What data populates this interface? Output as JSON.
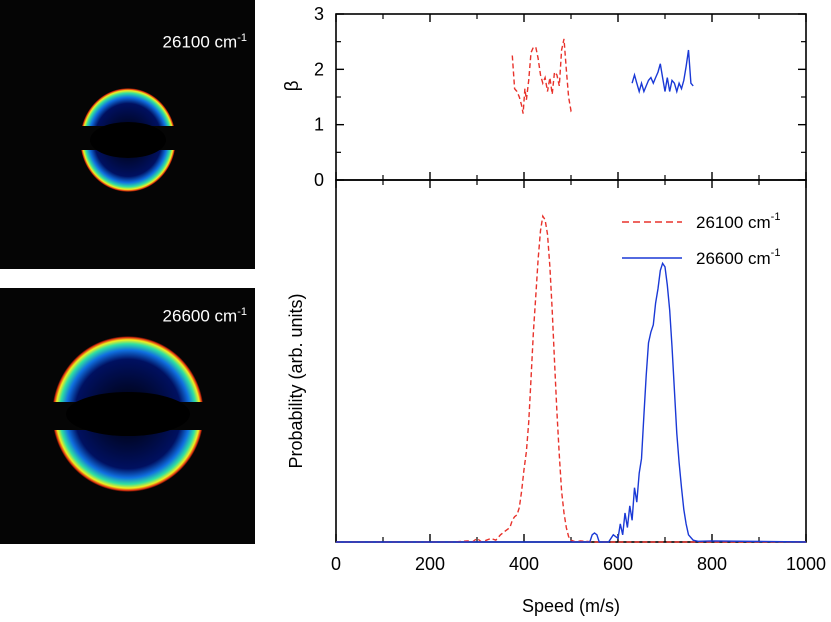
{
  "images": [
    {
      "label": "26100 cm",
      "sup": "-1"
    },
    {
      "label": "26600 cm",
      "sup": "-1"
    }
  ],
  "chart_data": [
    {
      "type": "line",
      "panel": "beta",
      "ylabel": "β",
      "xlim": [
        0,
        1000
      ],
      "ylim": [
        0,
        3
      ],
      "yticks": [
        0,
        1,
        2,
        3
      ],
      "grid": false,
      "series": [
        {
          "name": "26100 cm-1",
          "color": "#e8322b",
          "style": "dashed",
          "x": [
            375,
            380,
            385,
            390,
            395,
            398,
            402,
            405,
            410,
            415,
            420,
            425,
            430,
            435,
            440,
            445,
            450,
            455,
            460,
            465,
            470,
            475,
            480,
            485,
            490,
            495,
            500,
            505
          ],
          "y": [
            2.25,
            1.65,
            1.6,
            1.5,
            1.35,
            1.2,
            1.65,
            1.45,
            1.8,
            2.3,
            2.4,
            2.4,
            2.2,
            1.9,
            1.75,
            1.85,
            1.6,
            1.85,
            1.55,
            1.95,
            1.9,
            1.7,
            2.35,
            2.55,
            2.0,
            1.5,
            1.25,
            1.3
          ]
        },
        {
          "name": "26600 cm-1",
          "color": "#1a39d6",
          "style": "solid",
          "x": [
            630,
            635,
            640,
            645,
            650,
            655,
            660,
            665,
            670,
            675,
            680,
            685,
            690,
            695,
            700,
            705,
            710,
            715,
            720,
            725,
            730,
            735,
            740,
            745,
            750,
            755,
            760
          ],
          "y": [
            1.75,
            1.9,
            1.75,
            1.6,
            1.75,
            1.6,
            1.7,
            1.8,
            1.85,
            1.75,
            1.85,
            1.95,
            2.1,
            1.85,
            1.6,
            1.85,
            1.6,
            1.8,
            1.75,
            1.6,
            1.75,
            1.65,
            1.8,
            2.05,
            2.35,
            1.75,
            1.7
          ]
        }
      ]
    },
    {
      "type": "line",
      "panel": "probability",
      "title": "",
      "xlabel": "Speed (m/s)",
      "ylabel": "Probability (arb. units)",
      "xlim": [
        0,
        1000
      ],
      "ylim": [
        0,
        1.0
      ],
      "xticks": [
        0,
        200,
        400,
        600,
        800,
        1000
      ],
      "legend_position": "top-right",
      "grid": false,
      "series": [
        {
          "name": "26100 cm",
          "sup": "-1",
          "color": "#e8322b",
          "style": "dashed",
          "x": [
            0,
            250,
            280,
            290,
            300,
            310,
            320,
            330,
            340,
            350,
            360,
            370,
            375,
            380,
            385,
            390,
            395,
            400,
            405,
            410,
            415,
            420,
            425,
            430,
            435,
            440,
            445,
            450,
            455,
            460,
            465,
            470,
            475,
            480,
            485,
            490,
            495,
            500,
            510,
            520,
            550,
            1000
          ],
          "y": [
            0,
            0,
            0.003,
            0,
            0.01,
            0,
            0.005,
            0.01,
            0.005,
            0.02,
            0.03,
            0.04,
            0.06,
            0.07,
            0.075,
            0.095,
            0.14,
            0.2,
            0.25,
            0.33,
            0.45,
            0.58,
            0.68,
            0.78,
            0.86,
            0.9,
            0.89,
            0.85,
            0.76,
            0.64,
            0.5,
            0.36,
            0.24,
            0.14,
            0.08,
            0.04,
            0.015,
            0.005,
            0,
            0.003,
            0,
            0
          ]
        },
        {
          "name": "26600 cm",
          "sup": "-1",
          "color": "#1a39d6",
          "style": "solid",
          "x": [
            0,
            540,
            545,
            550,
            555,
            560,
            580,
            590,
            600,
            605,
            610,
            615,
            620,
            625,
            630,
            635,
            640,
            645,
            650,
            655,
            660,
            665,
            670,
            675,
            680,
            685,
            690,
            695,
            700,
            705,
            710,
            715,
            720,
            725,
            730,
            735,
            740,
            745,
            750,
            760,
            770,
            800,
            1000
          ],
          "y": [
            0,
            0,
            0.02,
            0.025,
            0.02,
            0,
            0,
            0.02,
            0.01,
            0.05,
            0.02,
            0.08,
            0.04,
            0.1,
            0.06,
            0.15,
            0.11,
            0.19,
            0.23,
            0.35,
            0.46,
            0.55,
            0.58,
            0.6,
            0.66,
            0.7,
            0.75,
            0.77,
            0.76,
            0.71,
            0.64,
            0.54,
            0.42,
            0.3,
            0.22,
            0.15,
            0.09,
            0.05,
            0.02,
            0.005,
            0.002,
            0.003,
            0
          ]
        }
      ]
    }
  ]
}
